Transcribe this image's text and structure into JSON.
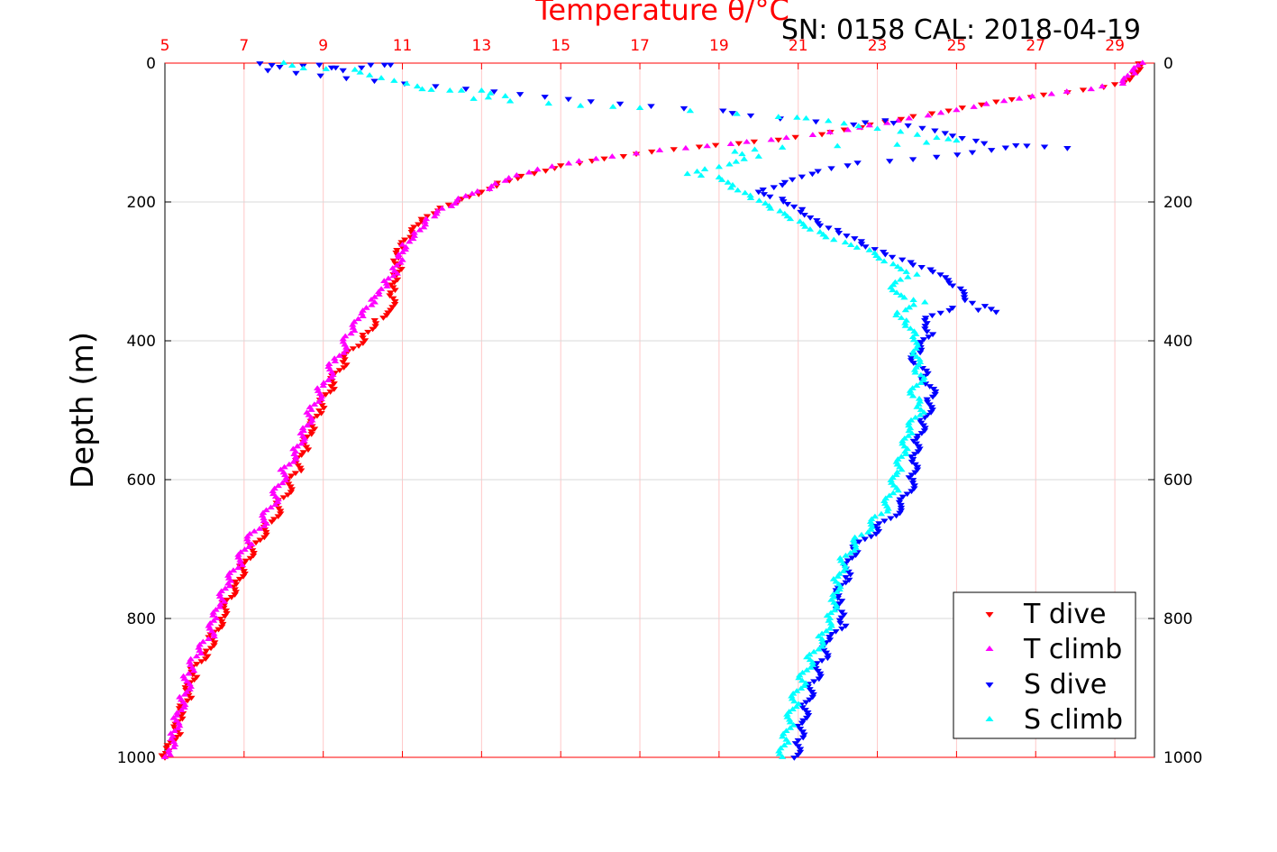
{
  "header": {
    "title": "Temperature θ/°C",
    "instrument": "SN: 0158  CAL: 2018-04-19"
  },
  "chart_data": {
    "type": "scatter",
    "title": "Temperature θ/°C",
    "xlabel": "Temperature θ/°C",
    "ylabel": "Depth (m)",
    "xlim": [
      5,
      30
    ],
    "ylim": [
      0,
      1000
    ],
    "y_reversed": true,
    "x_ticks": [
      "5",
      "7",
      "9",
      "11",
      "13",
      "15",
      "17",
      "19",
      "21",
      "23",
      "25",
      "27",
      "29"
    ],
    "y_ticks": [
      "0",
      "200",
      "400",
      "600",
      "800",
      "1000"
    ],
    "grid": true,
    "legend_position": "bottom-right",
    "series": [
      {
        "name": "T dive",
        "color": "#ff0000",
        "marker": "triangle-down",
        "points": [
          [
            29.6,
            0
          ],
          [
            29.4,
            20
          ],
          [
            29.0,
            30
          ],
          [
            28.2,
            38
          ],
          [
            27.2,
            45
          ],
          [
            26.0,
            55
          ],
          [
            24.8,
            68
          ],
          [
            23.6,
            80
          ],
          [
            22.6,
            92
          ],
          [
            21.6,
            102
          ],
          [
            20.5,
            110
          ],
          [
            19.5,
            115
          ],
          [
            18.5,
            120
          ],
          [
            17.3,
            127
          ],
          [
            16.1,
            137
          ],
          [
            15.0,
            147
          ],
          [
            14.0,
            162
          ],
          [
            13.4,
            172
          ],
          [
            13.0,
            185
          ],
          [
            12.5,
            195
          ],
          [
            11.9,
            212
          ],
          [
            11.5,
            228
          ],
          [
            11.2,
            250
          ],
          [
            11.0,
            265
          ],
          [
            10.9,
            280
          ],
          [
            10.9,
            300
          ],
          [
            10.8,
            315
          ],
          [
            10.7,
            330
          ],
          [
            10.7,
            355
          ],
          [
            10.3,
            370
          ],
          [
            10.0,
            395
          ],
          [
            9.5,
            430
          ],
          [
            9.2,
            465
          ],
          [
            8.9,
            500
          ],
          [
            8.7,
            530
          ],
          [
            8.5,
            560
          ],
          [
            8.3,
            590
          ],
          [
            8.0,
            625
          ],
          [
            7.7,
            660
          ],
          [
            7.3,
            690
          ],
          [
            7.0,
            720
          ],
          [
            6.8,
            750
          ],
          [
            6.5,
            780
          ],
          [
            6.4,
            800
          ],
          [
            6.2,
            830
          ],
          [
            6.0,
            850
          ],
          [
            5.7,
            880
          ],
          [
            5.6,
            910
          ],
          [
            5.4,
            940
          ],
          [
            5.3,
            970
          ],
          [
            5.1,
            990
          ],
          [
            5.0,
            1000
          ]
        ]
      },
      {
        "name": "T climb",
        "color": "#ff00ff",
        "marker": "triangle-up",
        "points": [
          [
            29.7,
            0
          ],
          [
            29.5,
            15
          ],
          [
            29.2,
            30
          ],
          [
            28.4,
            38
          ],
          [
            27.4,
            45
          ],
          [
            26.2,
            55
          ],
          [
            25.0,
            68
          ],
          [
            23.8,
            80
          ],
          [
            22.8,
            90
          ],
          [
            21.8,
            100
          ],
          [
            20.7,
            108
          ],
          [
            19.7,
            114
          ],
          [
            18.7,
            120
          ],
          [
            17.5,
            126
          ],
          [
            16.3,
            135
          ],
          [
            15.2,
            145
          ],
          [
            14.2,
            158
          ],
          [
            13.6,
            170
          ],
          [
            13.2,
            182
          ],
          [
            12.6,
            192
          ],
          [
            12.0,
            210
          ],
          [
            11.6,
            225
          ],
          [
            11.3,
            245
          ],
          [
            11.0,
            262
          ],
          [
            10.9,
            280
          ],
          [
            10.8,
            300
          ],
          [
            10.6,
            318
          ],
          [
            10.4,
            330
          ],
          [
            10.3,
            345
          ],
          [
            10.0,
            365
          ],
          [
            9.7,
            390
          ],
          [
            9.3,
            430
          ],
          [
            9.0,
            465
          ],
          [
            8.7,
            500
          ],
          [
            8.5,
            530
          ],
          [
            8.3,
            560
          ],
          [
            8.0,
            590
          ],
          [
            7.8,
            625
          ],
          [
            7.5,
            660
          ],
          [
            7.1,
            690
          ],
          [
            6.9,
            720
          ],
          [
            6.6,
            750
          ],
          [
            6.4,
            780
          ],
          [
            6.3,
            800
          ],
          [
            6.1,
            830
          ],
          [
            5.8,
            855
          ],
          [
            5.6,
            880
          ],
          [
            5.5,
            910
          ],
          [
            5.3,
            940
          ],
          [
            5.2,
            970
          ],
          [
            5.1,
            990
          ],
          [
            5.0,
            1000
          ]
        ]
      },
      {
        "name": "S dive",
        "color": "#0000ff",
        "marker": "triangle-down",
        "points": [
          [
            7.4,
            0
          ],
          [
            7.9,
            5
          ],
          [
            8.9,
            2
          ],
          [
            9.5,
            10
          ],
          [
            10.2,
            2
          ],
          [
            10.7,
            2
          ],
          [
            7.6,
            10
          ],
          [
            14.6,
            48
          ],
          [
            16.5,
            58
          ],
          [
            19.1,
            68
          ],
          [
            19.8,
            75
          ],
          [
            22.4,
            88
          ],
          [
            23.2,
            82
          ],
          [
            24.9,
            104
          ],
          [
            25.7,
            115
          ],
          [
            27.8,
            122
          ],
          [
            26.5,
            118
          ],
          [
            25.4,
            128
          ],
          [
            23.9,
            138
          ],
          [
            22.5,
            143
          ],
          [
            21.5,
            155
          ],
          [
            20.6,
            175
          ],
          [
            20.0,
            185
          ],
          [
            20.6,
            195
          ],
          [
            21.1,
            210
          ],
          [
            21.5,
            230
          ],
          [
            22.0,
            240
          ],
          [
            22.6,
            260
          ],
          [
            23.2,
            275
          ],
          [
            23.9,
            290
          ],
          [
            24.4,
            300
          ],
          [
            24.9,
            320
          ],
          [
            25.4,
            345
          ],
          [
            26.0,
            358
          ],
          [
            24.9,
            352
          ],
          [
            24.2,
            370
          ],
          [
            24.4,
            390
          ],
          [
            23.9,
            420
          ],
          [
            24.2,
            450
          ],
          [
            24.4,
            480
          ],
          [
            24.2,
            510
          ],
          [
            24.0,
            540
          ],
          [
            23.9,
            570
          ],
          [
            23.9,
            600
          ],
          [
            23.6,
            640
          ],
          [
            23.0,
            670
          ],
          [
            22.4,
            700
          ],
          [
            22.2,
            740
          ],
          [
            22.0,
            770
          ],
          [
            22.1,
            790
          ],
          [
            22.2,
            810
          ],
          [
            21.8,
            830
          ],
          [
            21.6,
            860
          ],
          [
            21.4,
            890
          ],
          [
            21.2,
            920
          ],
          [
            21.1,
            950
          ],
          [
            21.0,
            975
          ],
          [
            20.9,
            1000
          ]
        ]
      },
      {
        "name": "S climb",
        "color": "#00ffff",
        "marker": "triangle-up",
        "points": [
          [
            8.0,
            0
          ],
          [
            8.5,
            8
          ],
          [
            9.8,
            10
          ],
          [
            11.5,
            38
          ],
          [
            12.2,
            40
          ],
          [
            13.0,
            40
          ],
          [
            13.6,
            48
          ],
          [
            12.8,
            52
          ],
          [
            15.5,
            62
          ],
          [
            17.0,
            65
          ],
          [
            20.5,
            78
          ],
          [
            21.2,
            80
          ],
          [
            23.0,
            95
          ],
          [
            24.5,
            108
          ],
          [
            25.0,
            112
          ],
          [
            23.5,
            118
          ],
          [
            20.6,
            122
          ],
          [
            19.4,
            128
          ],
          [
            20.0,
            135
          ],
          [
            19.0,
            150
          ],
          [
            18.2,
            160
          ],
          [
            19.0,
            165
          ],
          [
            19.3,
            180
          ],
          [
            19.8,
            195
          ],
          [
            20.3,
            210
          ],
          [
            20.8,
            225
          ],
          [
            21.3,
            240
          ],
          [
            21.9,
            255
          ],
          [
            22.8,
            270
          ],
          [
            23.4,
            290
          ],
          [
            24.0,
            305
          ],
          [
            23.4,
            320
          ],
          [
            23.6,
            335
          ],
          [
            24.2,
            345
          ],
          [
            23.5,
            360
          ],
          [
            23.7,
            375
          ],
          [
            23.9,
            395
          ],
          [
            23.9,
            420
          ],
          [
            24.1,
            450
          ],
          [
            23.9,
            480
          ],
          [
            24.1,
            500
          ],
          [
            23.8,
            530
          ],
          [
            23.7,
            560
          ],
          [
            23.5,
            590
          ],
          [
            23.4,
            620
          ],
          [
            23.1,
            650
          ],
          [
            22.6,
            680
          ],
          [
            22.2,
            710
          ],
          [
            22.0,
            740
          ],
          [
            21.9,
            770
          ],
          [
            21.8,
            800
          ],
          [
            21.6,
            830
          ],
          [
            21.3,
            860
          ],
          [
            21.1,
            890
          ],
          [
            20.9,
            920
          ],
          [
            20.8,
            950
          ],
          [
            20.7,
            975
          ],
          [
            20.6,
            1000
          ]
        ]
      }
    ]
  }
}
